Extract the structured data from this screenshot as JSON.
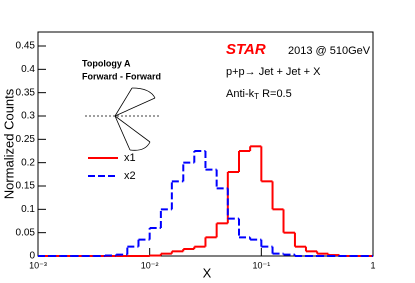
{
  "chart_data": {
    "type": "histogram",
    "xlabel": "X",
    "ylabel": "Normalized Counts",
    "log_x": true,
    "xlim": [
      0.001,
      1
    ],
    "xticks": [
      {
        "value": 0.001,
        "label": "10⁻³"
      },
      {
        "value": 0.01,
        "label": "10⁻²"
      },
      {
        "value": 0.1,
        "label": "10⁻¹"
      },
      1
    ],
    "ylim": [
      0,
      0.48
    ],
    "yticks": [
      0,
      0.05,
      0.1,
      0.15,
      0.2,
      0.25,
      0.3,
      0.35,
      0.4,
      0.45
    ],
    "bins": [
      0.001,
      0.00126,
      0.00158,
      0.002,
      0.00251,
      0.00316,
      0.00398,
      0.00501,
      0.00631,
      0.00794,
      0.01,
      0.0126,
      0.0158,
      0.02,
      0.0251,
      0.0316,
      0.0398,
      0.0501,
      0.0631,
      0.0794,
      0.1,
      0.126,
      0.158,
      0.2,
      0.251,
      0.316,
      0.398,
      0.501,
      0.631,
      0.794,
      1
    ],
    "series": [
      {
        "name": "x1",
        "color": "#ff0000",
        "dash": false,
        "values": [
          0,
          0,
          0,
          0,
          0,
          0,
          0,
          0,
          0,
          0,
          0.001,
          0.005,
          0.01,
          0.015,
          0.02,
          0.04,
          0.07,
          0.18,
          0.225,
          0.235,
          0.16,
          0.1,
          0.05,
          0.02,
          0.01,
          0.005,
          0.002,
          0,
          0,
          0
        ]
      },
      {
        "name": "x2",
        "color": "#0000ff",
        "dash": true,
        "values": [
          0,
          0,
          0,
          0,
          0,
          0,
          0.001,
          0.003,
          0.02,
          0.035,
          0.06,
          0.1,
          0.16,
          0.2,
          0.225,
          0.185,
          0.145,
          0.08,
          0.04,
          0.035,
          0.02,
          0.005,
          0.003,
          0,
          0,
          0,
          0,
          0,
          0,
          0
        ]
      }
    ],
    "legend": "middle-left",
    "annotations": {
      "topology": "Topology A",
      "config": "Forward - Forward",
      "experiment": "STAR",
      "run": "2013 @ 510GeV",
      "process": "p+p→ Jet + Jet + X",
      "algo": [
        "Anti-k",
        "T",
        " R=0.5"
      ]
    }
  }
}
